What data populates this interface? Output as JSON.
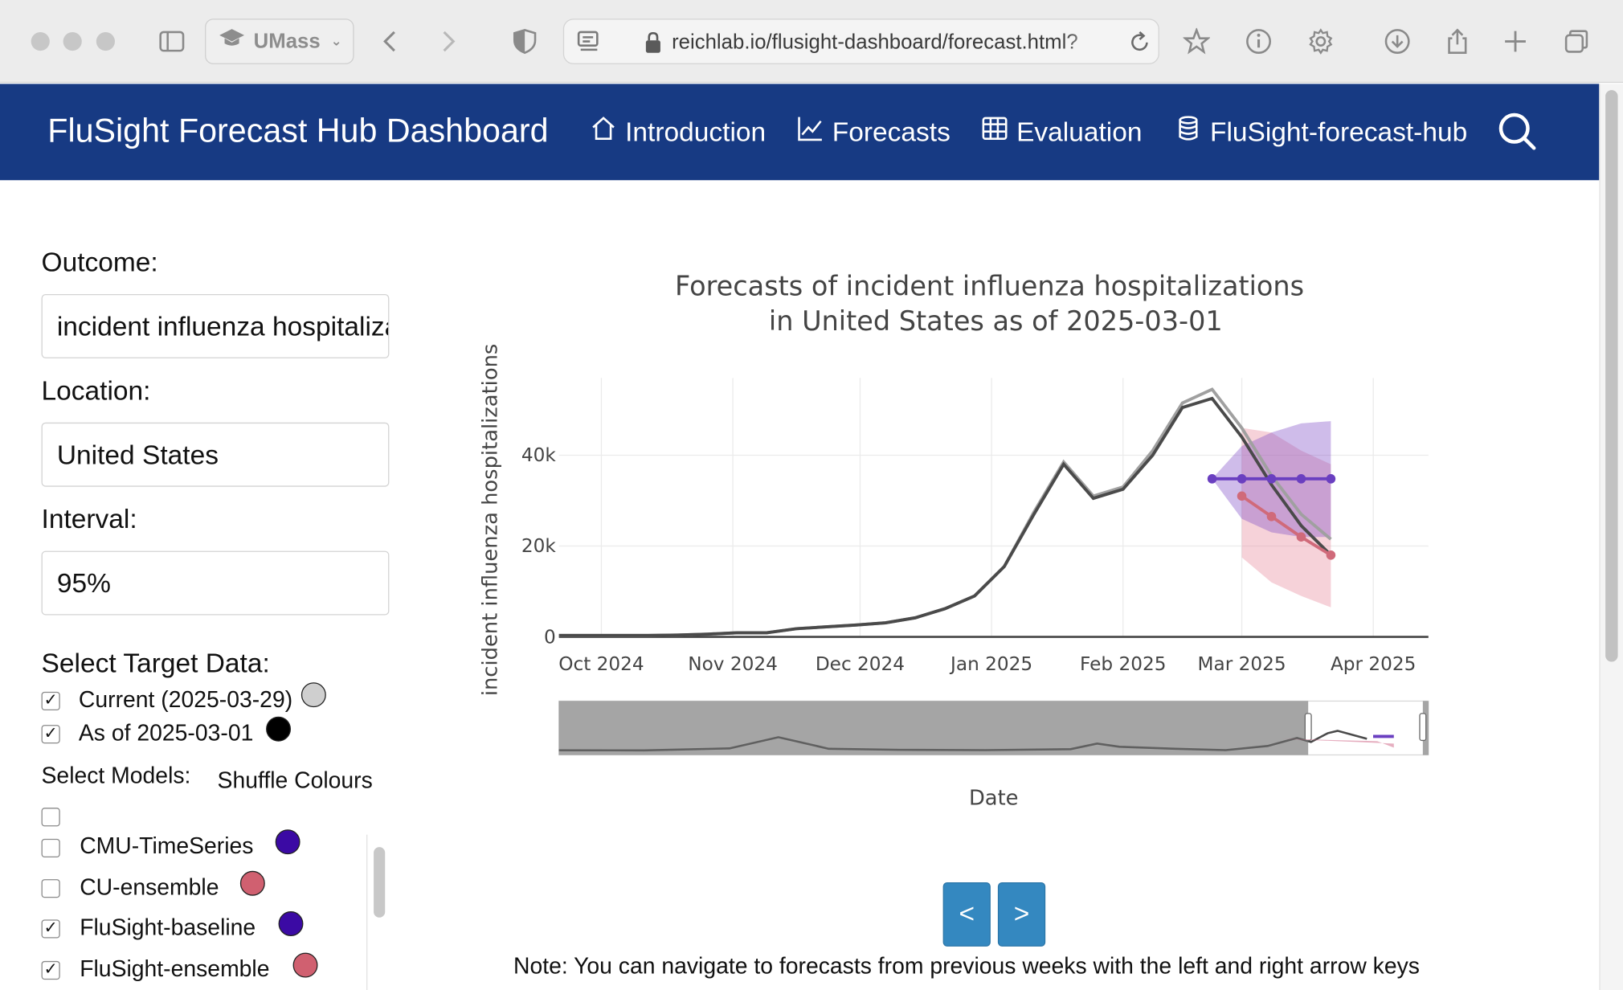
{
  "browser": {
    "profile_label": "UMass",
    "url": "reichlab.io/flusight-dashboard/forecast.html?"
  },
  "navbar": {
    "brand": "FluSight Forecast Hub Dashboard",
    "links": [
      {
        "label": "Introduction",
        "icon": "home-icon"
      },
      {
        "label": "Forecasts",
        "icon": "line-chart-icon"
      },
      {
        "label": "Evaluation",
        "icon": "table-icon"
      },
      {
        "label": "FluSight-forecast-hub",
        "icon": "database-icon"
      }
    ]
  },
  "sidebar": {
    "outcome_label": "Outcome:",
    "outcome_value": "incident influenza hospitalizations",
    "location_label": "Location:",
    "location_value": "United States",
    "interval_label": "Interval:",
    "interval_value": "95%",
    "target_data_label": "Select Target Data:",
    "target_data": [
      {
        "label": "Current (2025-03-29)",
        "checked": true,
        "color": "#cfcfcf"
      },
      {
        "label": "As of 2025-03-01",
        "checked": true,
        "color": "#000000"
      }
    ],
    "models_label": "Select Models:",
    "shuffle_label": "Shuffle Colours",
    "models": [
      {
        "label": "CMU-TimeSeries",
        "checked": false,
        "color": "#3b0aa4"
      },
      {
        "label": "CU-ensemble",
        "checked": false,
        "color": "#d06070"
      },
      {
        "label": "FluSight-baseline",
        "checked": true,
        "color": "#3b0aa4"
      },
      {
        "label": "FluSight-ensemble",
        "checked": true,
        "color": "#d06070"
      }
    ]
  },
  "chart_data": {
    "type": "line",
    "title_line1": "Forecasts of incident influenza hospitalizations",
    "title_line2": "in United States as of 2025-03-01",
    "xlabel": "Date",
    "ylabel": "incident influenza hospitalizations",
    "x_ticks": [
      "Oct 2024",
      "Nov 2024",
      "Dec 2024",
      "Jan 2025",
      "Feb 2025",
      "Mar 2025",
      "Apr 2025"
    ],
    "y_ticks": [
      "0",
      "20k",
      "40k"
    ],
    "xlim": [
      "2024-09-21",
      "2025-04-14"
    ],
    "ylim": [
      0,
      57000
    ],
    "grid": true,
    "series": [
      {
        "name": "Current (2025-03-29)",
        "color": "#a0a0a0",
        "x": [
          "2024-09-21",
          "2024-09-28",
          "2024-10-05",
          "2024-10-12",
          "2024-10-19",
          "2024-10-26",
          "2024-11-02",
          "2024-11-09",
          "2024-11-16",
          "2024-11-23",
          "2024-11-30",
          "2024-12-07",
          "2024-12-14",
          "2024-12-21",
          "2024-12-28",
          "2025-01-04",
          "2025-01-11",
          "2025-01-18",
          "2025-01-25",
          "2025-02-01",
          "2025-02-08",
          "2025-02-15",
          "2025-02-22",
          "2025-03-01",
          "2025-03-08",
          "2025-03-15",
          "2025-03-22"
        ],
        "values": [
          300,
          300,
          300,
          300,
          400,
          600,
          900,
          900,
          1800,
          2200,
          2600,
          3100,
          4200,
          6200,
          9000,
          15500,
          27500,
          38500,
          31000,
          33000,
          41000,
          51500,
          54500,
          46000,
          35500,
          27000,
          21500
        ]
      },
      {
        "name": "As of 2025-03-01",
        "color": "#4a4a4a",
        "x": [
          "2024-09-21",
          "2024-09-28",
          "2024-10-05",
          "2024-10-12",
          "2024-10-19",
          "2024-10-26",
          "2024-11-02",
          "2024-11-09",
          "2024-11-16",
          "2024-11-23",
          "2024-11-30",
          "2024-12-07",
          "2024-12-14",
          "2024-12-21",
          "2024-12-28",
          "2025-01-04",
          "2025-01-11",
          "2025-01-18",
          "2025-01-25",
          "2025-02-01",
          "2025-02-08",
          "2025-02-15",
          "2025-02-22",
          "2025-03-01",
          "2025-03-08",
          "2025-03-15",
          "2025-03-22"
        ],
        "values": [
          300,
          300,
          300,
          300,
          400,
          600,
          900,
          900,
          1800,
          2200,
          2600,
          3100,
          4200,
          6200,
          9000,
          15500,
          27000,
          38000,
          30500,
          32500,
          40000,
          50500,
          52500,
          44000,
          33500,
          24500,
          18000
        ]
      },
      {
        "name": "FluSight-baseline",
        "color": "#6a3fc0",
        "x": [
          "2025-02-22",
          "2025-03-01",
          "2025-03-08",
          "2025-03-15",
          "2025-03-22"
        ],
        "values": [
          34800,
          34800,
          34800,
          34800,
          34800
        ],
        "lower": [
          34800,
          26000,
          23000,
          22000,
          22000
        ],
        "upper": [
          34800,
          42000,
          45000,
          47000,
          47500
        ]
      },
      {
        "name": "FluSight-ensemble",
        "color": "#d06a7a",
        "x": [
          "2025-03-01",
          "2025-03-08",
          "2025-03-15",
          "2025-03-22"
        ],
        "values": [
          31000,
          26500,
          22000,
          18000
        ],
        "lower": [
          17500,
          12000,
          9000,
          6500
        ],
        "upper": [
          46000,
          45000,
          41000,
          38000
        ]
      }
    ]
  },
  "nav_buttons": {
    "prev": "<",
    "next": ">"
  },
  "note": "Note: You can navigate to forecasts from previous weeks with the left and right arrow keys"
}
